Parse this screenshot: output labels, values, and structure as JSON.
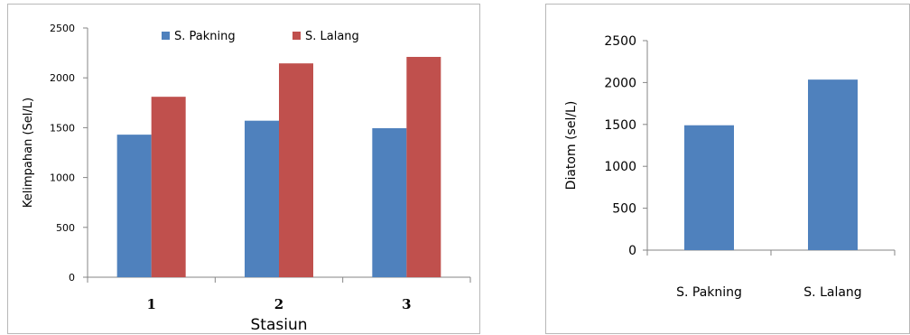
{
  "chart_data": [
    {
      "type": "bar",
      "categories": [
        "1",
        "2",
        "3"
      ],
      "series": [
        {
          "name": "S. Pakning",
          "values": [
            1430,
            1570,
            1495
          ],
          "color": "#4f81bd"
        },
        {
          "name": "S. Lalang",
          "values": [
            1810,
            2145,
            2210
          ],
          "color": "#c0504d"
        }
      ],
      "xlabel": "Stasiun",
      "ylabel": "Kelimpahan (Sel/L)",
      "ylim": [
        0,
        2500
      ],
      "yticks": [
        0,
        500,
        1000,
        1500,
        2000,
        2500
      ],
      "legend": "top-center",
      "grid": false
    },
    {
      "type": "bar",
      "categories": [
        "S. Pakning",
        "S. Lalang"
      ],
      "values": [
        1490,
        2035
      ],
      "color": "#4f81bd",
      "xlabel": "",
      "ylabel": "Diatom (sel/L)",
      "ylim": [
        0,
        2500
      ],
      "yticks": [
        0,
        500,
        1000,
        1500,
        2000,
        2500
      ],
      "grid": false
    }
  ]
}
